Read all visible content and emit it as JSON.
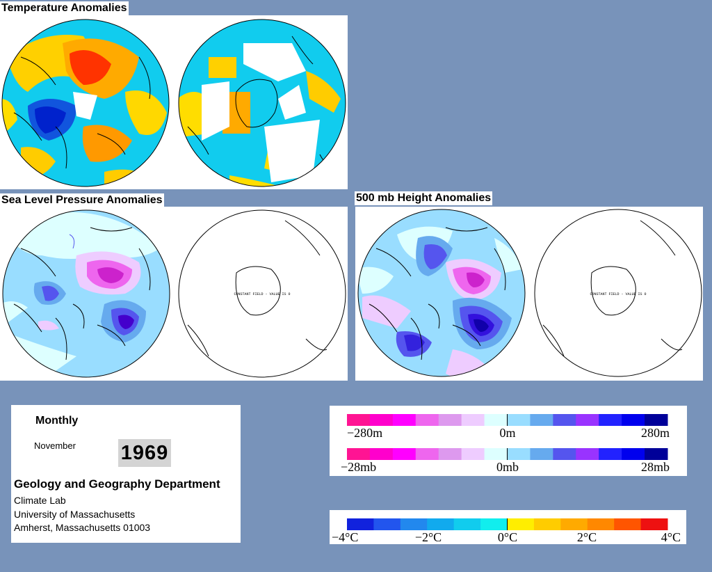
{
  "temperature": {
    "title": "Temperature Anomalies"
  },
  "slp": {
    "title": "Sea Level Pressure Anomalies",
    "constant_note": "CONSTANT FIELD - VALUE IS 0"
  },
  "height": {
    "title": "500 mb Height Anomalies",
    "constant_note": "CONSTANT FIELD - VALUE IS 0"
  },
  "info": {
    "period": "Monthly",
    "month": "November",
    "year": "1969",
    "department": "Geology and Geography Department",
    "lab": "Climate Lab",
    "university": "University of Massachusetts",
    "address": "Amherst, Massachusetts 01003"
  },
  "legend_height": {
    "labels": [
      "−280m",
      "0m",
      "280m"
    ],
    "colors": [
      "#ff1493",
      "#ff00cc",
      "#ff00ff",
      "#ee66ee",
      "#dd99ee",
      "#eeccff",
      "#ddffff",
      "#99ddff",
      "#66aaee",
      "#5555ee",
      "#9933ff",
      "#2222ff",
      "#0000ee",
      "#000099"
    ]
  },
  "legend_pressure": {
    "labels": [
      "−28mb",
      "0mb",
      "28mb"
    ]
  },
  "legend_temp": {
    "labels": [
      "−4°C",
      "−2°C",
      "0°C",
      "2°C",
      "4°C"
    ],
    "colors": [
      "#1122dd",
      "#2255ee",
      "#2288ee",
      "#11aaee",
      "#11ccee",
      "#11eeee",
      "#ffee00",
      "#ffcc00",
      "#ffaa00",
      "#ff8800",
      "#ff5500",
      "#ee1111"
    ]
  }
}
